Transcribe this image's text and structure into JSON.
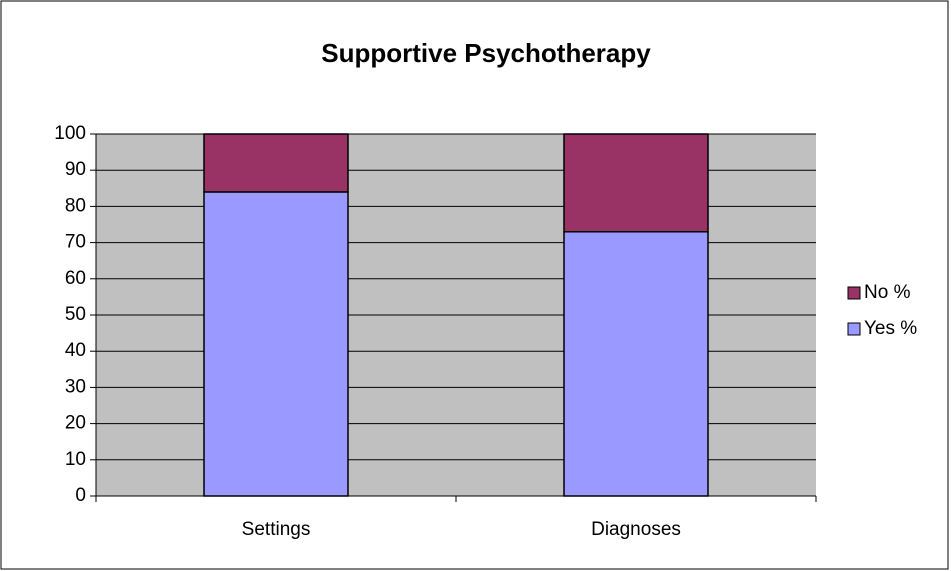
{
  "chart_data": {
    "type": "stacked_bar",
    "title": "Supportive Psychotherapy",
    "categories": [
      "Settings",
      "Diagnoses"
    ],
    "series": [
      {
        "name": "Yes %",
        "color": "#9999ff",
        "values": [
          84,
          73
        ]
      },
      {
        "name": "No %",
        "color": "#993366",
        "values": [
          16,
          27
        ]
      }
    ],
    "ylim": [
      0,
      100
    ],
    "yticks": [
      0,
      10,
      20,
      30,
      40,
      50,
      60,
      70,
      80,
      90,
      100
    ],
    "grid": true,
    "legend": "right"
  }
}
